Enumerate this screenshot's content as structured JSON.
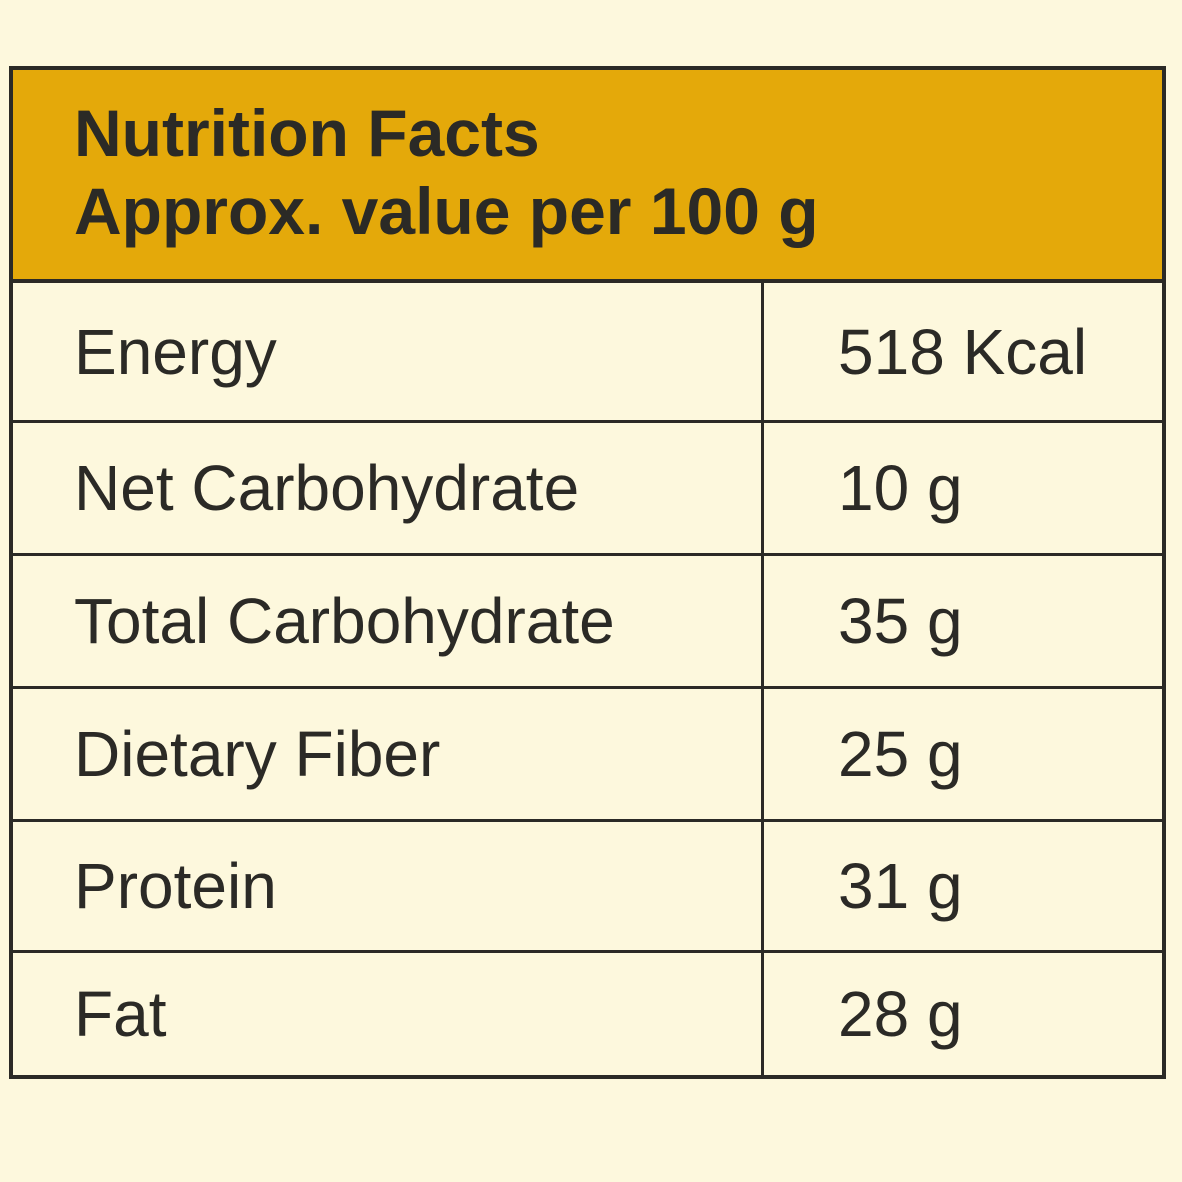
{
  "header": {
    "title": "Nutrition Facts",
    "subtitle": "Approx. value per 100 g"
  },
  "rows": [
    {
      "label": "Energy",
      "value": "518 Kcal"
    },
    {
      "label": "Net Carbohydrate",
      "value": "10 g"
    },
    {
      "label": "Total Carbohydrate",
      "value": "35 g"
    },
    {
      "label": "Dietary Fiber",
      "value": "25 g"
    },
    {
      "label": "Protein",
      "value": "31 g"
    },
    {
      "label": "Fat",
      "value": "28 g"
    }
  ],
  "colors": {
    "background": "#fdf8dd",
    "header": "#e4a90a",
    "border": "#2b2a26",
    "text": "#2b2a26"
  }
}
